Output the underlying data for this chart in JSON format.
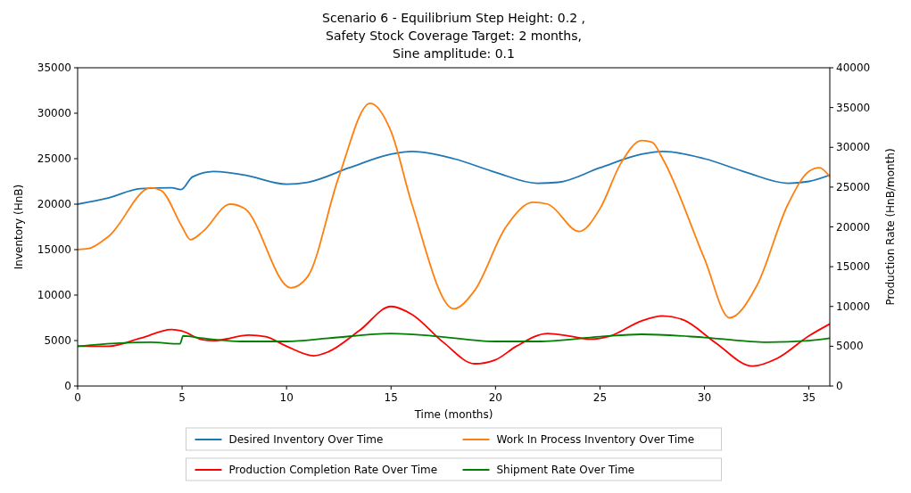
{
  "chart_data": {
    "type": "line",
    "title": "Scenario 6 - Equilibrium Step Height: 0.2 ,\nSafety Stock Coverage Target: 2 months,\nSine amplitude: 0.1",
    "xlabel": "Time (months)",
    "ylabel": "Inventory (HnB)",
    "y2label": "Production Rate (HnB/month)",
    "xlim": [
      0,
      36
    ],
    "xticks": [
      0,
      5,
      10,
      15,
      20,
      25,
      30,
      35
    ],
    "ylim": [
      0,
      35000
    ],
    "yticks": [
      0,
      5000,
      10000,
      15000,
      20000,
      25000,
      30000,
      35000
    ],
    "y2lim": [
      0,
      40000
    ],
    "y2ticks": [
      0,
      5000,
      10000,
      15000,
      20000,
      25000,
      30000,
      35000,
      40000
    ],
    "legend": "bottom",
    "grid": false,
    "series": [
      {
        "name": "Desired Inventory Over Time",
        "color": "#1f77b4",
        "x": [
          0,
          1.5,
          3,
          4.5,
          4.95,
          5.5,
          6.5,
          8,
          10,
          11,
          13,
          15,
          16,
          18,
          20,
          22,
          23,
          25,
          27,
          28,
          30,
          32,
          34,
          35,
          36
        ],
        "values": [
          20000,
          20700,
          21700,
          21800,
          21600,
          23000,
          23600,
          23200,
          22200,
          22400,
          24000,
          25500,
          25800,
          25000,
          23500,
          22300,
          22400,
          24000,
          25500,
          25800,
          25000,
          23500,
          22300,
          22500,
          23200
        ]
      },
      {
        "name": "Work In Process Inventory Over Time",
        "color": "#ff7f0e",
        "x": [
          0,
          0.5,
          1.5,
          3.5,
          4,
          5,
          5.4,
          6,
          7.3,
          8,
          10.2,
          11,
          12.5,
          14,
          15,
          16,
          18,
          19,
          20.5,
          21.8,
          22.5,
          24,
          25,
          26,
          27,
          27.5,
          28,
          30,
          31.2,
          32.5,
          34,
          35,
          35.5,
          36
        ],
        "values": [
          15000,
          15100,
          16500,
          21800,
          21500,
          17500,
          16100,
          17000,
          20000,
          19500,
          10800,
          12000,
          23000,
          31100,
          28000,
          20000,
          8500,
          10500,
          17500,
          20200,
          20000,
          17000,
          19500,
          24500,
          27000,
          26800,
          25000,
          14000,
          7500,
          11000,
          20000,
          23600,
          24000,
          23000
        ]
      },
      {
        "name": "Production Completion Rate Over Time",
        "color": "#ff0000",
        "axis": "y2",
        "x": [
          0,
          1.5,
          3,
          4.5,
          5,
          6,
          6.5,
          8.2,
          9,
          10,
          11.3,
          12,
          13.5,
          15,
          16,
          17.5,
          19,
          20,
          21,
          22.5,
          23.5,
          24.5,
          25.5,
          27,
          28,
          29,
          30.5,
          32.3,
          33.5,
          35,
          36
        ],
        "values": [
          5000,
          5000,
          6000,
          7100,
          6900,
          5800,
          5700,
          6400,
          6200,
          5000,
          3800,
          4300,
          7000,
          10000,
          9000,
          5500,
          2800,
          3300,
          5000,
          6600,
          6300,
          5900,
          6300,
          8200,
          8800,
          8300,
          5500,
          2500,
          3500,
          6300,
          7800
        ]
      },
      {
        "name": "Shipment Rate Over Time",
        "color": "#008000",
        "axis": "y2",
        "x": [
          0,
          2,
          3.5,
          4.9,
          5.05,
          6,
          8,
          10,
          12,
          15,
          17,
          20,
          22,
          25,
          27,
          30,
          33,
          35,
          36
        ],
        "values": [
          5000,
          5400,
          5500,
          5300,
          6300,
          6000,
          5600,
          5600,
          6000,
          6600,
          6300,
          5600,
          5600,
          6200,
          6500,
          6100,
          5500,
          5700,
          6000
        ]
      }
    ]
  }
}
